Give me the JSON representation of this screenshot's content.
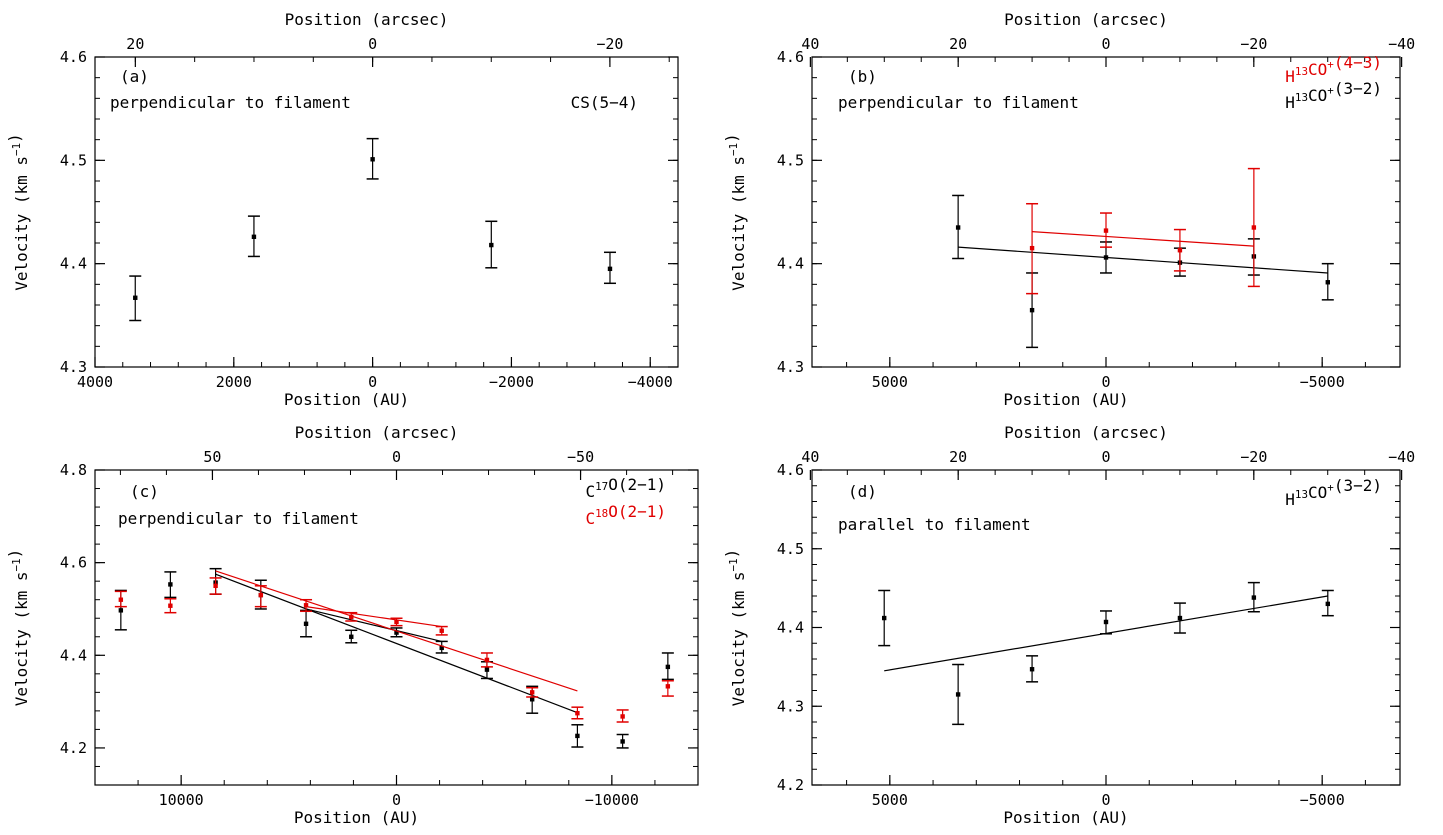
{
  "chart_data": [
    {
      "id": "a",
      "type": "scatter",
      "panel_label": "(a)",
      "annotation": "perpendicular to filament",
      "legend": [
        {
          "text": "CS(5−4)",
          "color": "#000000"
        }
      ],
      "xlabel": "Position (AU)",
      "ylabel": "Velocity (km s⁻¹)",
      "top_xlabel": "Position (arcsec)",
      "xlim": [
        4000,
        -4400
      ],
      "ylim": [
        4.3,
        4.6
      ],
      "arcsec_per_au": 0.00585,
      "x_ticks": [
        {
          "v": 4000,
          "t": "4000"
        },
        {
          "v": 2000,
          "t": "2000"
        },
        {
          "v": 0,
          "t": "0"
        },
        {
          "v": -2000,
          "t": "−2000"
        },
        {
          "v": -4000,
          "t": "−4000"
        }
      ],
      "y_ticks": [
        {
          "v": 4.3,
          "t": "4.3"
        },
        {
          "v": 4.4,
          "t": "4.4"
        },
        {
          "v": 4.5,
          "t": "4.5"
        },
        {
          "v": 4.6,
          "t": "4.6"
        }
      ],
      "top_ticks": [
        {
          "v": 20,
          "t": "20"
        },
        {
          "v": 0,
          "t": "0"
        },
        {
          "v": -20,
          "t": "−20"
        }
      ],
      "series": [
        {
          "color": "#000000",
          "points": [
            {
              "x": 3420,
              "y": 4.367,
              "lo": 4.345,
              "hi": 4.388
            },
            {
              "x": 1710,
              "y": 4.426,
              "lo": 4.407,
              "hi": 4.446
            },
            {
              "x": 0,
              "y": 4.501,
              "lo": 4.482,
              "hi": 4.521
            },
            {
              "x": -1710,
              "y": 4.418,
              "lo": 4.396,
              "hi": 4.441
            },
            {
              "x": -3420,
              "y": 4.395,
              "lo": 4.381,
              "hi": 4.411
            }
          ],
          "fit": null
        }
      ]
    },
    {
      "id": "b",
      "type": "scatter",
      "panel_label": "(b)",
      "annotation": "perpendicular to filament",
      "legend": [
        {
          "text": "H¹³CO⁺(4−3)",
          "color": "#e00000"
        },
        {
          "text": "H¹³CO⁺(3−2)",
          "color": "#000000"
        }
      ],
      "xlabel": "Position (AU)",
      "ylabel": "Velocity (km s⁻¹)",
      "top_xlabel": "Position (arcsec)",
      "xlim": [
        6800,
        -6800
      ],
      "ylim": [
        4.3,
        4.6
      ],
      "arcsec_per_au": 0.00585,
      "x_ticks": [
        {
          "v": 5000,
          "t": "5000"
        },
        {
          "v": 0,
          "t": "0"
        },
        {
          "v": -5000,
          "t": "−5000"
        }
      ],
      "y_ticks": [
        {
          "v": 4.3,
          "t": "4.3"
        },
        {
          "v": 4.4,
          "t": "4.4"
        },
        {
          "v": 4.5,
          "t": "4.5"
        },
        {
          "v": 4.6,
          "t": "4.6"
        }
      ],
      "top_ticks": [
        {
          "v": 40,
          "t": "40"
        },
        {
          "v": 20,
          "t": "20"
        },
        {
          "v": 0,
          "t": "0"
        },
        {
          "v": -20,
          "t": "−20"
        },
        {
          "v": -40,
          "t": "−40"
        }
      ],
      "series": [
        {
          "color": "#000000",
          "points": [
            {
              "x": 3420,
              "y": 4.435,
              "lo": 4.405,
              "hi": 4.466
            },
            {
              "x": 1710,
              "y": 4.355,
              "lo": 4.319,
              "hi": 4.391
            },
            {
              "x": 0,
              "y": 4.406,
              "lo": 4.391,
              "hi": 4.421
            },
            {
              "x": -1710,
              "y": 4.401,
              "lo": 4.388,
              "hi": 4.415
            },
            {
              "x": -3420,
              "y": 4.407,
              "lo": 4.389,
              "hi": 4.424
            },
            {
              "x": -5130,
              "y": 4.382,
              "lo": 4.365,
              "hi": 4.4
            }
          ],
          "fit": [
            {
              "x": 3420,
              "y": 4.416
            },
            {
              "x": -5130,
              "y": 4.391
            }
          ]
        },
        {
          "color": "#e00000",
          "points": [
            {
              "x": 1710,
              "y": 4.415,
              "lo": 4.371,
              "hi": 4.458
            },
            {
              "x": 0,
              "y": 4.432,
              "lo": 4.416,
              "hi": 4.449
            },
            {
              "x": -1710,
              "y": 4.413,
              "lo": 4.393,
              "hi": 4.433
            },
            {
              "x": -3420,
              "y": 4.435,
              "lo": 4.378,
              "hi": 4.492
            }
          ],
          "fit": [
            {
              "x": 1710,
              "y": 4.431
            },
            {
              "x": -3420,
              "y": 4.417
            }
          ]
        }
      ]
    },
    {
      "id": "c",
      "type": "scatter",
      "panel_label": "(c)",
      "annotation": "perpendicular to filament",
      "legend": [
        {
          "text": "C¹⁷O(2−1)",
          "color": "#000000"
        },
        {
          "text": "C¹⁸O(2−1)",
          "color": "#e00000"
        }
      ],
      "xlabel": "Position (AU)",
      "ylabel": "Velocity (km s⁻¹)",
      "top_xlabel": "Position (arcsec)",
      "xlim": [
        14000,
        -14000
      ],
      "ylim": [
        4.12,
        4.8
      ],
      "arcsec_per_au": 0.00585,
      "x_ticks": [
        {
          "v": 10000,
          "t": "10000"
        },
        {
          "v": 0,
          "t": "0"
        },
        {
          "v": -10000,
          "t": "−10000"
        }
      ],
      "y_ticks": [
        {
          "v": 4.2,
          "t": "4.2"
        },
        {
          "v": 4.4,
          "t": "4.4"
        },
        {
          "v": 4.6,
          "t": "4.6"
        },
        {
          "v": 4.8,
          "t": "4.8"
        }
      ],
      "top_ticks": [
        {
          "v": 50,
          "t": "50"
        },
        {
          "v": 0,
          "t": "0"
        },
        {
          "v": -50,
          "t": "−50"
        }
      ],
      "series": [
        {
          "color": "#000000",
          "points": [
            {
              "x": 12800,
              "y": 4.497,
              "lo": 4.455,
              "hi": 4.54
            },
            {
              "x": 10500,
              "y": 4.553,
              "lo": 4.525,
              "hi": 4.58
            },
            {
              "x": 8400,
              "y": 4.557,
              "lo": 4.532,
              "hi": 4.587
            },
            {
              "x": 6300,
              "y": 4.53,
              "lo": 4.5,
              "hi": 4.562
            },
            {
              "x": 4200,
              "y": 4.468,
              "lo": 4.44,
              "hi": 4.497
            },
            {
              "x": 2100,
              "y": 4.44,
              "lo": 4.427,
              "hi": 4.454
            },
            {
              "x": 0,
              "y": 4.449,
              "lo": 4.44,
              "hi": 4.459
            },
            {
              "x": -2100,
              "y": 4.416,
              "lo": 4.405,
              "hi": 4.43
            },
            {
              "x": -4200,
              "y": 4.369,
              "lo": 4.35,
              "hi": 4.386
            },
            {
              "x": -6300,
              "y": 4.305,
              "lo": 4.275,
              "hi": 4.333
            },
            {
              "x": -8400,
              "y": 4.226,
              "lo": 4.202,
              "hi": 4.25
            },
            {
              "x": -10500,
              "y": 4.214,
              "lo": 4.2,
              "hi": 4.229
            },
            {
              "x": -12600,
              "y": 4.375,
              "lo": 4.348,
              "hi": 4.405
            }
          ],
          "fit": [
            {
              "x": 8400,
              "y": 4.575
            },
            {
              "x": -8400,
              "y": 4.276
            }
          ],
          "fit2": [
            {
              "x": 4200,
              "y": 4.5
            },
            {
              "x": -2100,
              "y": 4.43
            }
          ]
        },
        {
          "color": "#e00000",
          "points": [
            {
              "x": 12800,
              "y": 4.52,
              "lo": 4.505,
              "hi": 4.538
            },
            {
              "x": 10500,
              "y": 4.507,
              "lo": 4.492,
              "hi": 4.522
            },
            {
              "x": 8400,
              "y": 4.55,
              "lo": 4.532,
              "hi": 4.567
            },
            {
              "x": 6300,
              "y": 4.53,
              "lo": 4.505,
              "hi": 4.55
            },
            {
              "x": 4200,
              "y": 4.508,
              "lo": 4.495,
              "hi": 4.52
            },
            {
              "x": 2100,
              "y": 4.483,
              "lo": 4.474,
              "hi": 4.492
            },
            {
              "x": 0,
              "y": 4.472,
              "lo": 4.464,
              "hi": 4.48
            },
            {
              "x": -2100,
              "y": 4.453,
              "lo": 4.444,
              "hi": 4.462
            },
            {
              "x": -4200,
              "y": 4.39,
              "lo": 4.375,
              "hi": 4.405
            },
            {
              "x": -6300,
              "y": 4.32,
              "lo": 4.31,
              "hi": 4.33
            },
            {
              "x": -8400,
              "y": 4.275,
              "lo": 4.263,
              "hi": 4.288
            },
            {
              "x": -10500,
              "y": 4.268,
              "lo": 4.256,
              "hi": 4.282
            },
            {
              "x": -12600,
              "y": 4.333,
              "lo": 4.312,
              "hi": 4.345
            }
          ],
          "fit": [
            {
              "x": 8400,
              "y": 4.582
            },
            {
              "x": -8400,
              "y": 4.323
            }
          ],
          "fit2": [
            {
              "x": 4200,
              "y": 4.505
            },
            {
              "x": -2100,
              "y": 4.462
            }
          ]
        }
      ]
    },
    {
      "id": "d",
      "type": "scatter",
      "panel_label": "(d)",
      "annotation": "parallel to filament",
      "legend": [
        {
          "text": "H¹³CO⁺(3−2)",
          "color": "#000000"
        }
      ],
      "xlabel": "Position (AU)",
      "ylabel": "Velocity (km s⁻¹)",
      "top_xlabel": "Position (arcsec)",
      "xlim": [
        6800,
        -6800
      ],
      "ylim": [
        4.2,
        4.6
      ],
      "arcsec_per_au": 0.00585,
      "x_ticks": [
        {
          "v": 5000,
          "t": "5000"
        },
        {
          "v": 0,
          "t": "0"
        },
        {
          "v": -5000,
          "t": "−5000"
        }
      ],
      "y_ticks": [
        {
          "v": 4.2,
          "t": "4.2"
        },
        {
          "v": 4.3,
          "t": "4.3"
        },
        {
          "v": 4.4,
          "t": "4.4"
        },
        {
          "v": 4.5,
          "t": "4.5"
        },
        {
          "v": 4.6,
          "t": "4.6"
        }
      ],
      "top_ticks": [
        {
          "v": 40,
          "t": "40"
        },
        {
          "v": 20,
          "t": "20"
        },
        {
          "v": 0,
          "t": "0"
        },
        {
          "v": -20,
          "t": "−20"
        },
        {
          "v": -40,
          "t": "−40"
        }
      ],
      "series": [
        {
          "color": "#000000",
          "points": [
            {
              "x": 5130,
              "y": 4.412,
              "lo": 4.377,
              "hi": 4.447
            },
            {
              "x": 3420,
              "y": 4.315,
              "lo": 4.277,
              "hi": 4.353
            },
            {
              "x": 1710,
              "y": 4.347,
              "lo": 4.331,
              "hi": 4.364
            },
            {
              "x": 0,
              "y": 4.407,
              "lo": 4.392,
              "hi": 4.421
            },
            {
              "x": -1710,
              "y": 4.412,
              "lo": 4.393,
              "hi": 4.431
            },
            {
              "x": -3420,
              "y": 4.438,
              "lo": 4.42,
              "hi": 4.457
            },
            {
              "x": -5130,
              "y": 4.43,
              "lo": 4.415,
              "hi": 4.447
            }
          ],
          "fit": [
            {
              "x": 5130,
              "y": 4.345
            },
            {
              "x": -5130,
              "y": 4.44
            }
          ]
        }
      ]
    }
  ]
}
